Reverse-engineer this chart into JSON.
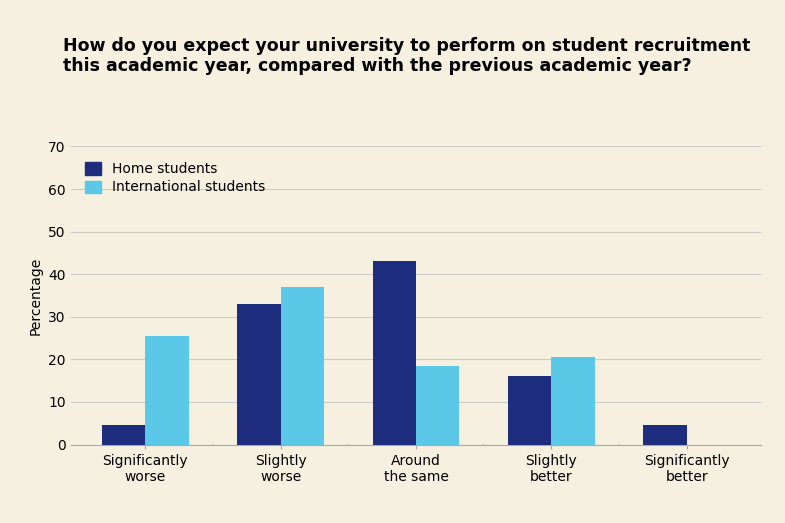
{
  "title": "How do you expect your university to perform on student recruitment\nthis academic year, compared with the previous academic year?",
  "categories": [
    "Significantly\nworse",
    "Slightly\nworse",
    "Around\nthe same",
    "Slightly\nbetter",
    "Significantly\nbetter"
  ],
  "home_values": [
    4.5,
    33,
    43,
    16,
    4.5
  ],
  "intl_values": [
    25.5,
    37,
    18.5,
    20.5,
    0
  ],
  "home_color": "#1f2d7e",
  "intl_color": "#5bc8e8",
  "ylabel": "Percentage",
  "ylim": [
    0,
    70
  ],
  "yticks": [
    0,
    10,
    20,
    30,
    40,
    50,
    60,
    70
  ],
  "background_color": "#f5f0e0",
  "legend_labels": [
    "Home students",
    "International students"
  ],
  "bar_width": 0.32,
  "title_fontsize": 12.5,
  "axis_fontsize": 10,
  "tick_fontsize": 10,
  "grid_color": "#cccccc",
  "spine_color": "#aaaaaa"
}
